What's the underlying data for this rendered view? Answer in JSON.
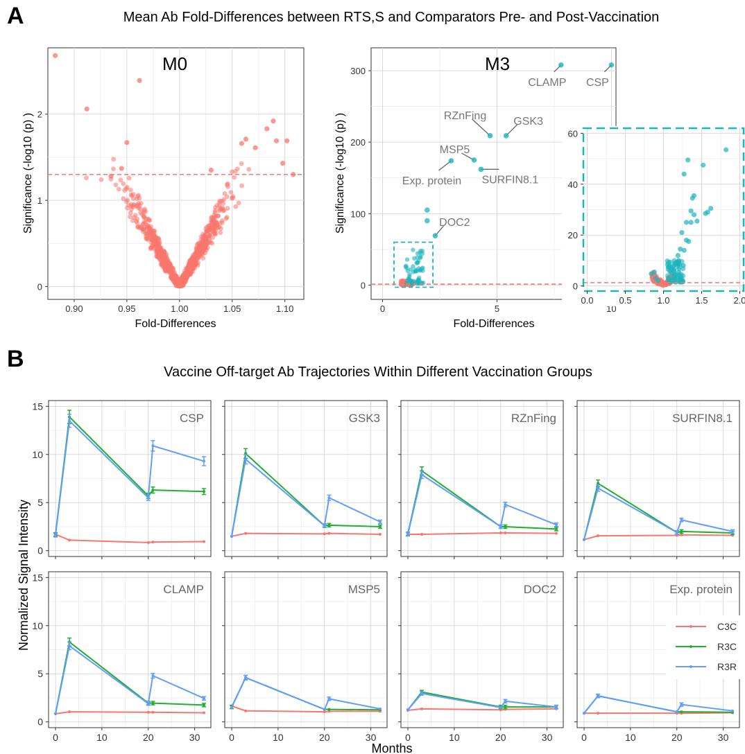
{
  "panel_a": {
    "letter": "A",
    "title": "Mean Ab Fold-Differences between RTS,S and Comparators Pre- and Post-Vaccination"
  },
  "panel_b": {
    "letter": "B",
    "title": "Vaccine Off-target Ab Trajectories Within Different Vaccination Groups",
    "xlabel": "Months",
    "ylabel": "Normalized Signal Intensity"
  },
  "colors": {
    "c3c": "#f8766d",
    "r3c": "#1fae2f",
    "r3r": "#619cff",
    "teal": "#1cb4bd",
    "salmon": "#f8766d"
  },
  "chart_data": [
    {
      "type": "scatter",
      "facet": "M0",
      "xlabel": "Fold-Differences",
      "ylabel": "Significance (-log10 (p) )",
      "xlim": [
        0.875,
        1.118
      ],
      "ylim": [
        -0.15,
        2.77
      ],
      "xticks": [
        "0.90",
        "0.95",
        "1.00",
        "1.05",
        "1.10"
      ],
      "xtick_values": [
        0.9,
        0.95,
        1.0,
        1.05,
        1.1
      ],
      "yticks": [
        "0",
        "1",
        "2"
      ],
      "ytick_values": [
        0,
        1,
        2
      ],
      "threshold": 1.3,
      "cloud": "about 1000 proteins in a V shape around fold-difference 1.00, most below the threshold",
      "points": [
        [
          0.882,
          2.68
        ],
        [
          0.912,
          2.06
        ],
        [
          0.962,
          2.39
        ],
        [
          0.95,
          1.67
        ],
        [
          1.063,
          1.71
        ],
        [
          1.059,
          1.66
        ],
        [
          1.083,
          1.83
        ],
        [
          1.089,
          1.92
        ],
        [
          1.092,
          1.69
        ],
        [
          1.102,
          1.69
        ],
        [
          1.108,
          1.3
        ],
        [
          1.098,
          1.43
        ],
        [
          1.072,
          1.61
        ],
        [
          1.03,
          1.35
        ],
        [
          0.935,
          1.28
        ],
        [
          0.945,
          1.37
        ]
      ]
    },
    {
      "type": "scatter",
      "facet": "M3",
      "xlabel": "Fold-Differences",
      "ylabel": "Significance (-log10 (p) )",
      "xlim": [
        -0.5,
        10.2
      ],
      "ylim": [
        -20,
        332
      ],
      "xticks": [
        "0",
        "5",
        "10"
      ],
      "xtick_values": [
        0,
        5,
        10
      ],
      "yticks": [
        "0",
        "100",
        "200",
        "300"
      ],
      "ytick_values": [
        0,
        100,
        200,
        300
      ],
      "threshold": 1.3,
      "cloud": "most proteins clustered near fold-difference 1.0 with significance below about 60",
      "labeled_points": [
        {
          "label": "CLAMP",
          "x": 7.8,
          "y": 308
        },
        {
          "label": "CSP",
          "x": 10.0,
          "y": 308
        },
        {
          "label": "RZnFing",
          "x": 4.7,
          "y": 209
        },
        {
          "label": "GSK3",
          "x": 5.4,
          "y": 209
        },
        {
          "label": "MSP5",
          "x": 4.0,
          "y": 175
        },
        {
          "label": "SURFIN8.1",
          "x": 4.3,
          "y": 162
        },
        {
          "label": "Exp. protein",
          "x": 3.0,
          "y": 174
        },
        {
          "label": "DOC2",
          "x": 2.3,
          "y": 69
        }
      ],
      "other_points": [
        [
          1.95,
          105
        ],
        [
          1.95,
          90
        ]
      ],
      "zoom_box": {
        "xlim": [
          0.5,
          2.2
        ],
        "ylim": [
          -3,
          60
        ]
      }
    },
    {
      "type": "scatter",
      "facet": "M3 inset",
      "xlim": [
        -0.05,
        2.05
      ],
      "ylim": [
        -2,
        62
      ],
      "xticks": [
        "0.0",
        "0.5",
        "1.0",
        "1.5",
        "2.0"
      ],
      "xtick_values": [
        0,
        0.5,
        1.0,
        1.5,
        2.0
      ],
      "yticks": [
        "0",
        "20",
        "40",
        "60"
      ],
      "ytick_values": [
        0,
        20,
        40,
        60
      ],
      "threshold": 1.3,
      "points": [
        [
          1.82,
          53.5
        ],
        [
          1.32,
          49.5
        ],
        [
          1.52,
          47.5
        ],
        [
          1.27,
          44
        ],
        [
          1.4,
          35.5
        ],
        [
          1.38,
          34.5
        ],
        [
          1.36,
          29.5
        ],
        [
          1.4,
          28
        ],
        [
          1.62,
          30.5
        ],
        [
          1.55,
          28.5
        ],
        [
          1.58,
          29
        ],
        [
          1.36,
          25
        ],
        [
          1.44,
          25.5
        ],
        [
          1.3,
          25
        ],
        [
          1.24,
          21
        ],
        [
          1.3,
          18
        ],
        [
          1.33,
          17.5
        ],
        [
          1.22,
          14.5
        ],
        [
          1.19,
          12
        ],
        [
          1.27,
          14
        ],
        [
          1.2,
          10
        ],
        [
          1.15,
          9
        ],
        [
          1.26,
          8
        ],
        [
          1.12,
          7.5
        ],
        [
          0.84,
          4.8
        ],
        [
          0.88,
          5.5
        ],
        [
          0.9,
          3.0
        ],
        [
          0.93,
          2.0
        ]
      ]
    },
    {
      "type": "line",
      "xlabel": "Months",
      "ylabel": "Normalized Signal Intensity",
      "xlim": [
        -1.5,
        33.5
      ],
      "ylim": [
        -0.6,
        15.6
      ],
      "x": [
        0,
        3,
        20,
        21,
        32
      ],
      "xticks": [
        "0",
        "10",
        "20",
        "30"
      ],
      "xtick_values": [
        0,
        10,
        20,
        30
      ],
      "yticks": [
        "0",
        "5",
        "10",
        "15"
      ],
      "ytick_values": [
        0,
        5,
        10,
        15
      ],
      "legend": [
        "C3C",
        "R3C",
        "R3R"
      ],
      "legend_position": "bottom-right panel",
      "panels": [
        {
          "title": "CSP",
          "series": [
            {
              "name": "C3C",
              "values": [
                1.7,
                1.1,
                0.85,
                0.9,
                0.95
              ]
            },
            {
              "name": "R3C",
              "values": [
                1.7,
                13.9,
                5.7,
                6.3,
                6.15
              ]
            },
            {
              "name": "R3R",
              "values": [
                1.6,
                13.5,
                5.5,
                10.9,
                9.3
              ]
            }
          ]
        },
        {
          "title": "GSK3",
          "series": [
            {
              "name": "C3C",
              "values": [
                1.5,
                1.8,
                1.75,
                1.8,
                1.7
              ]
            },
            {
              "name": "R3C",
              "values": [
                1.5,
                10.1,
                2.6,
                2.65,
                2.5
              ]
            },
            {
              "name": "R3R",
              "values": [
                1.5,
                9.5,
                2.6,
                5.5,
                3.0
              ]
            }
          ]
        },
        {
          "title": "RZnFing",
          "series": [
            {
              "name": "C3C",
              "values": [
                1.7,
                1.7,
                1.85,
                1.85,
                1.8
              ]
            },
            {
              "name": "R3C",
              "values": [
                1.75,
                8.3,
                2.5,
                2.5,
                2.25
              ]
            },
            {
              "name": "R3R",
              "values": [
                1.7,
                7.9,
                2.5,
                4.8,
                2.7
              ]
            }
          ]
        },
        {
          "title": "SURFIN8.1",
          "series": [
            {
              "name": "C3C",
              "values": [
                1.15,
                1.55,
                1.6,
                1.65,
                1.6
              ]
            },
            {
              "name": "R3C",
              "values": [
                1.15,
                7.0,
                1.9,
                2.0,
                1.85
              ]
            },
            {
              "name": "R3R",
              "values": [
                1.15,
                6.5,
                1.9,
                3.2,
                2.0
              ]
            }
          ]
        },
        {
          "title": "CLAMP",
          "series": [
            {
              "name": "C3C",
              "values": [
                0.85,
                1.05,
                1.0,
                1.0,
                0.95
              ]
            },
            {
              "name": "R3C",
              "values": [
                0.85,
                8.3,
                1.95,
                1.95,
                1.75
              ]
            },
            {
              "name": "R3R",
              "values": [
                0.85,
                7.9,
                1.9,
                4.8,
                2.45
              ]
            }
          ]
        },
        {
          "title": "MSP5",
          "series": [
            {
              "name": "C3C",
              "values": [
                1.65,
                1.15,
                1.05,
                1.1,
                1.1
              ]
            },
            {
              "name": "R3C",
              "values": [
                1.55,
                4.6,
                1.3,
                1.3,
                1.25
              ]
            },
            {
              "name": "R3R",
              "values": [
                1.5,
                4.6,
                1.3,
                2.4,
                1.35
              ]
            }
          ]
        },
        {
          "title": "DOC2",
          "series": [
            {
              "name": "C3C",
              "values": [
                1.2,
                1.35,
                1.25,
                1.3,
                1.35
              ]
            },
            {
              "name": "R3C",
              "values": [
                1.25,
                3.1,
                1.55,
                1.55,
                1.55
              ]
            },
            {
              "name": "R3R",
              "values": [
                1.25,
                2.95,
                1.5,
                2.15,
                1.55
              ]
            }
          ]
        },
        {
          "title": "Exp. protein",
          "series": [
            {
              "name": "C3C",
              "values": [
                0.9,
                0.9,
                0.9,
                0.9,
                0.95
              ]
            },
            {
              "name": "R3C",
              "values": [
                0.9,
                2.7,
                1.05,
                1.05,
                1.0
              ]
            },
            {
              "name": "R3R",
              "values": [
                0.9,
                2.7,
                1.05,
                1.8,
                1.15
              ]
            }
          ]
        }
      ]
    }
  ]
}
